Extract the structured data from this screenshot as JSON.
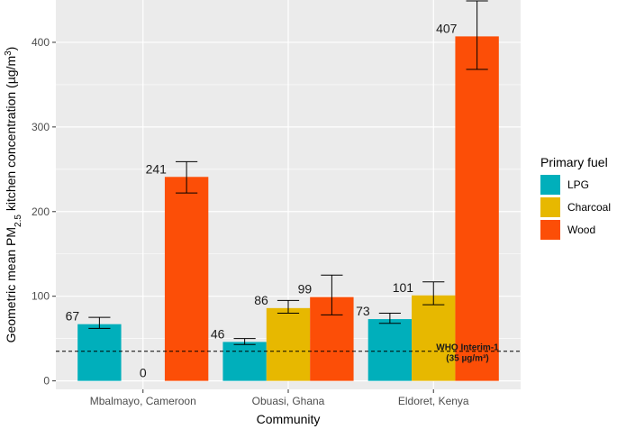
{
  "chart_data": {
    "type": "bar",
    "xlabel": "Community",
    "ylabel": "Geometric mean PM2.5 kitchen concentration (µg/m3)",
    "ylabel_parts": {
      "pre": "Geometric mean PM",
      "sub": "2.5",
      "mid": " kitchen concentration (µg/m",
      "sup": "3",
      "post": ")"
    },
    "ylim": [
      -10,
      450
    ],
    "yticks": [
      0,
      100,
      200,
      300,
      400
    ],
    "categories": [
      "Mbalmayo, Cameroon",
      "Obuasi, Ghana",
      "Eldoret, Kenya"
    ],
    "legend": {
      "title": "Primary fuel",
      "position": "right"
    },
    "grid": true,
    "series": [
      {
        "name": "LPG",
        "color": "#00AFBB",
        "values": [
          67,
          46,
          73
        ],
        "err_low": [
          62,
          43,
          68
        ],
        "err_high": [
          75,
          50,
          80
        ],
        "labels": [
          "67",
          "46",
          "73"
        ]
      },
      {
        "name": "Charcoal",
        "color": "#E7B800",
        "values": [
          0,
          86,
          101
        ],
        "err_low": [
          null,
          80,
          90
        ],
        "err_high": [
          null,
          95,
          117
        ],
        "labels": [
          "0",
          "86",
          "101"
        ]
      },
      {
        "name": "Wood",
        "color": "#FC4E07",
        "values": [
          241,
          99,
          407
        ],
        "err_low": [
          222,
          78,
          368
        ],
        "err_high": [
          259,
          125,
          449
        ],
        "labels": [
          "241",
          "99",
          "407"
        ]
      }
    ],
    "reference_line": {
      "value": 35,
      "label_line1": "WHO Interim-1",
      "label_line2": "(35 µg/m³)"
    }
  }
}
